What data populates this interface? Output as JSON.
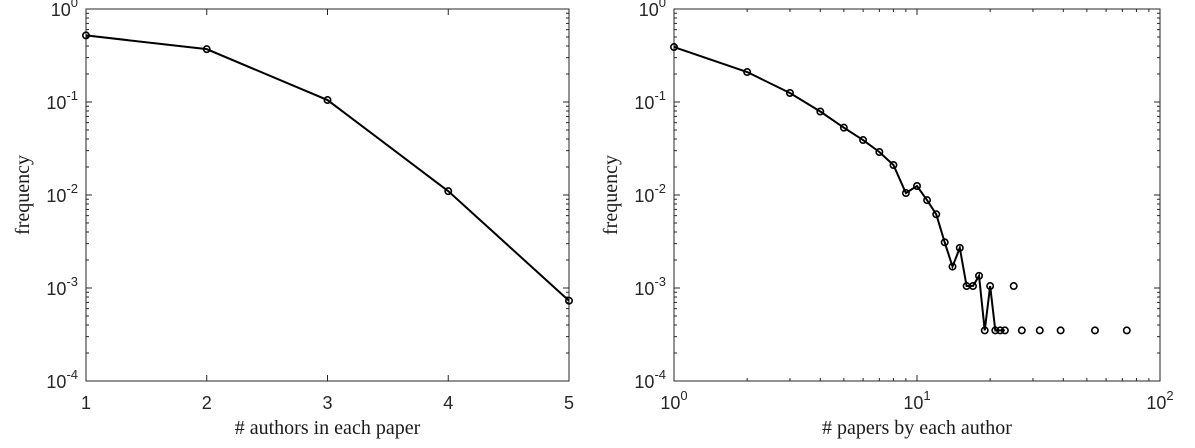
{
  "chart_data": [
    {
      "type": "line",
      "xlabel": "# authors in each paper",
      "ylabel": "frequency",
      "xscale": "linear",
      "yscale": "log",
      "xlim": [
        1,
        5
      ],
      "ylim": [
        0.0001,
        1
      ],
      "grid": false,
      "xticks": [
        1,
        2,
        3,
        4,
        5
      ],
      "xtick_labels": [
        "1",
        "2",
        "3",
        "4",
        "5"
      ],
      "yticks": [
        0.0001,
        0.001,
        0.01,
        0.1,
        1
      ],
      "ytick_labels": [
        {
          "base": "10",
          "exp": "-4"
        },
        {
          "base": "10",
          "exp": "-3"
        },
        {
          "base": "10",
          "exp": "-2"
        },
        {
          "base": "10",
          "exp": "-1"
        },
        {
          "base": "10",
          "exp": "0"
        }
      ],
      "series": [
        {
          "x": [
            1,
            2,
            3,
            4,
            5
          ],
          "y": [
            0.52,
            0.37,
            0.105,
            0.011,
            0.00073
          ],
          "style": "line-with-circle-markers",
          "color": "#000000"
        }
      ]
    },
    {
      "type": "line",
      "xlabel": "# papers by each author",
      "ylabel": "frequency",
      "xscale": "log",
      "yscale": "log",
      "xlim": [
        1,
        100
      ],
      "ylim": [
        0.0001,
        1
      ],
      "grid": false,
      "xticks": [
        1,
        10,
        100
      ],
      "xtick_labels": [
        {
          "base": "10",
          "exp": "0"
        },
        {
          "base": "10",
          "exp": "1"
        },
        {
          "base": "10",
          "exp": "2"
        }
      ],
      "yticks": [
        0.0001,
        0.001,
        0.01,
        0.1,
        1
      ],
      "ytick_labels": [
        {
          "base": "10",
          "exp": "-4"
        },
        {
          "base": "10",
          "exp": "-3"
        },
        {
          "base": "10",
          "exp": "-2"
        },
        {
          "base": "10",
          "exp": "-1"
        },
        {
          "base": "10",
          "exp": "0"
        }
      ],
      "series": [
        {
          "x": [
            1,
            2,
            3,
            4,
            5,
            6,
            7,
            8,
            9,
            10,
            11,
            12,
            13,
            14,
            15,
            16,
            17,
            18,
            19,
            20,
            21,
            22,
            23
          ],
          "y": [
            0.39,
            0.21,
            0.125,
            0.079,
            0.053,
            0.039,
            0.029,
            0.021,
            0.0105,
            0.0125,
            0.0088,
            0.0062,
            0.0031,
            0.0017,
            0.0027,
            0.00105,
            0.00105,
            0.00135,
            0.00035,
            0.00105,
            0.00035,
            0.00035,
            0.00035
          ],
          "style": "line-with-circle-markers",
          "color": "#000000"
        },
        {
          "x": [
            25,
            27,
            32,
            39,
            54,
            73
          ],
          "y": [
            0.00105,
            0.00035,
            0.00035,
            0.00035,
            0.00035,
            0.00035
          ],
          "style": "circle-markers",
          "color": "#000000"
        }
      ]
    }
  ]
}
